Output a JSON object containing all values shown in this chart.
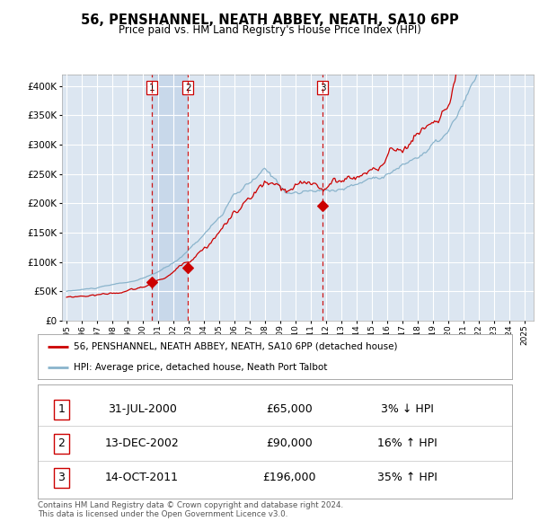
{
  "title": "56, PENSHANNEL, NEATH ABBEY, NEATH, SA10 6PP",
  "subtitle": "Price paid vs. HM Land Registry's House Price Index (HPI)",
  "background_color": "#dce6f1",
  "grid_color": "#ffffff",
  "red_line_color": "#cc0000",
  "blue_line_color": "#8ab4cc",
  "highlight_bg": "#c8d8ea",
  "transactions": [
    {
      "num": 1,
      "date_str": "31-JUL-2000",
      "year": 2000.58,
      "price": 65000,
      "pct": "3%",
      "dir": "↓"
    },
    {
      "num": 2,
      "date_str": "13-DEC-2002",
      "year": 2002.95,
      "price": 90000,
      "pct": "16%",
      "dir": "↑"
    },
    {
      "num": 3,
      "date_str": "14-OCT-2011",
      "year": 2011.79,
      "price": 196000,
      "pct": "35%",
      "dir": "↑"
    }
  ],
  "legend_label_red": "56, PENSHANNEL, NEATH ABBEY, NEATH, SA10 6PP (detached house)",
  "legend_label_blue": "HPI: Average price, detached house, Neath Port Talbot",
  "footer": "Contains HM Land Registry data © Crown copyright and database right 2024.\nThis data is licensed under the Open Government Licence v3.0.",
  "ylim": [
    0,
    420000
  ],
  "yticks": [
    0,
    50000,
    100000,
    150000,
    200000,
    250000,
    300000,
    350000,
    400000
  ],
  "xlim_start": 1994.7,
  "xlim_end": 2025.6
}
